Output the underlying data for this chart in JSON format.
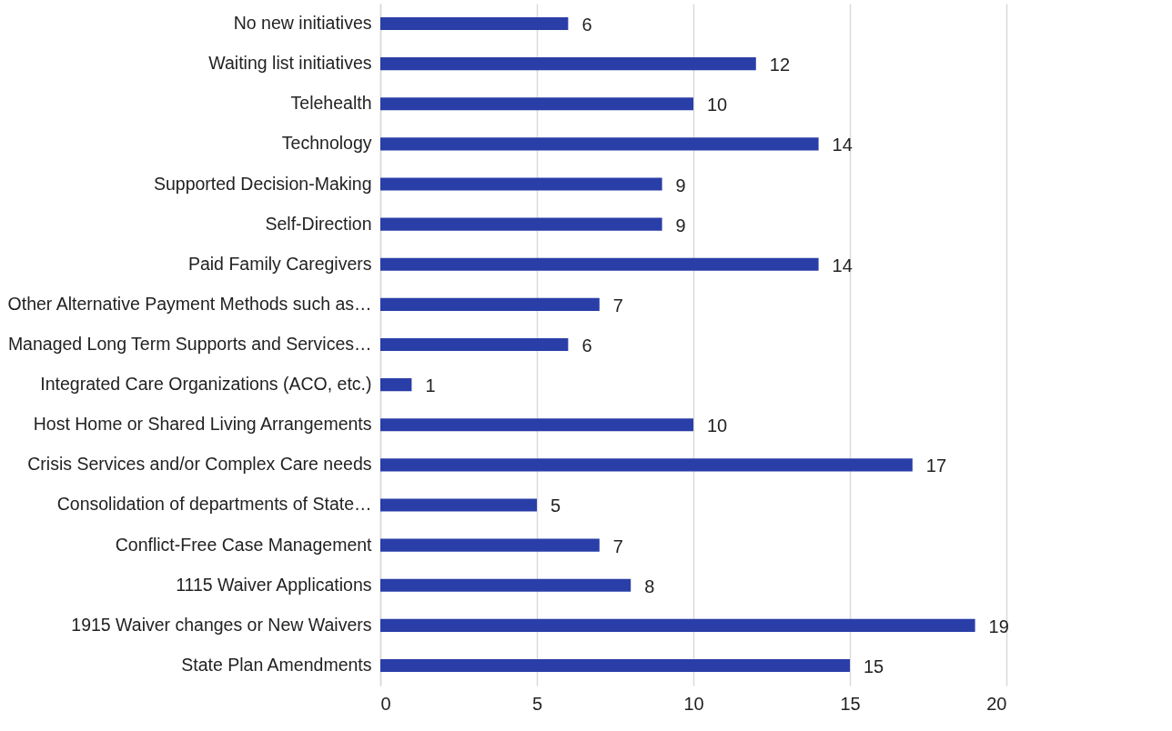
{
  "chart_data": {
    "type": "bar",
    "orientation": "horizontal",
    "categories": [
      "No new initiatives",
      "Waiting list initiatives",
      "Telehealth",
      "Technology",
      "Supported Decision-Making",
      "Self-Direction",
      "Paid Family Caregivers",
      "Other Alternative Payment Methods such as…",
      "Managed Long Term Supports and Services…",
      "Integrated Care Organizations (ACO, etc.)",
      "Host Home or Shared Living Arrangements",
      "Crisis Services and/or Complex Care needs",
      "Consolidation of departments of State…",
      "Conflict-Free Case Management",
      "1115 Waiver Applications",
      "1915 Waiver changes or New Waivers",
      "State Plan Amendments"
    ],
    "values": [
      6,
      12,
      10,
      14,
      9,
      9,
      14,
      7,
      6,
      1,
      10,
      17,
      5,
      7,
      8,
      19,
      15
    ],
    "color": "#2a3ea8",
    "xlim": [
      0,
      20
    ],
    "xticks": [
      0,
      5,
      10,
      15,
      20
    ],
    "grid": "x",
    "data_labels": true
  }
}
